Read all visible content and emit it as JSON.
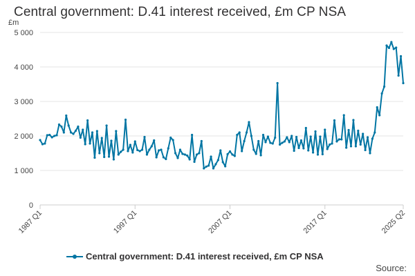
{
  "chart_data": {
    "type": "line",
    "title": "Central government: D.41 interest received, £m CP NSA",
    "ylabel": "£m",
    "ylim": [
      0,
      5000
    ],
    "yticks": [
      0,
      1000,
      2000,
      3000,
      4000,
      5000
    ],
    "ytick_labels": [
      "0",
      "1 000",
      "2 000",
      "3 000",
      "4 000",
      "5 000"
    ],
    "xtick_labels": [
      "1987 Q1",
      "1997 Q1",
      "2007 Q1",
      "2017 Q1",
      "2025 Q2"
    ],
    "xtick_positions": [
      0,
      40,
      80,
      120,
      153
    ],
    "legend_position": "bottom",
    "grid": true,
    "series": [
      {
        "name": "Central government: D.41 interest received, £m CP NSA",
        "color": "#0075a3",
        "x_start": "1987 Q1",
        "x_end": "2025 Q2",
        "values": [
          1880,
          1760,
          1780,
          2020,
          2030,
          1960,
          2000,
          2020,
          2330,
          2270,
          2100,
          2590,
          2300,
          2100,
          2060,
          2150,
          2270,
          1950,
          2180,
          1760,
          2450,
          1780,
          2100,
          1370,
          2140,
          1500,
          1940,
          1390,
          2300,
          1400,
          1860,
          1320,
          2140,
          1460,
          1540,
          1600,
          2470,
          1560,
          1740,
          1520,
          1840,
          1590,
          1560,
          1600,
          1970,
          1460,
          1600,
          1700,
          1870,
          1380,
          1580,
          1600,
          1380,
          1330,
          1640,
          1950,
          1880,
          1500,
          1360,
          1600,
          1480,
          1460,
          1430,
          1320,
          2030,
          1250,
          1460,
          1500,
          1850,
          1060,
          1110,
          1140,
          1400,
          1060,
          1180,
          1300,
          1580,
          1240,
          1120,
          1470,
          1550,
          1460,
          1420,
          2030,
          2100,
          1560,
          1850,
          2100,
          2400,
          2000,
          1600,
          1480,
          1850,
          1440,
          2030,
          1820,
          1980,
          1800,
          1780,
          1950,
          3530,
          1750,
          1800,
          1840,
          1960,
          1820,
          2000,
          1570,
          1970,
          1650,
          1870,
          1640,
          2230,
          1580,
          1980,
          1520,
          2130,
          1460,
          1980,
          1470,
          2180,
          1620,
          1750,
          1780,
          2450,
          1840,
          1900,
          1900,
          2600,
          1660,
          2170,
          1700,
          2460,
          1700,
          2150,
          1750,
          2060,
          1590,
          1960,
          1500,
          1920,
          2100,
          2830,
          2600,
          3230,
          3430,
          4620,
          4550,
          4720,
          4520,
          4560,
          3750,
          4310,
          3530
        ]
      }
    ]
  },
  "legend": {
    "label": "Central government: D.41 interest received, £m CP NSA"
  },
  "source_label": "Source:"
}
